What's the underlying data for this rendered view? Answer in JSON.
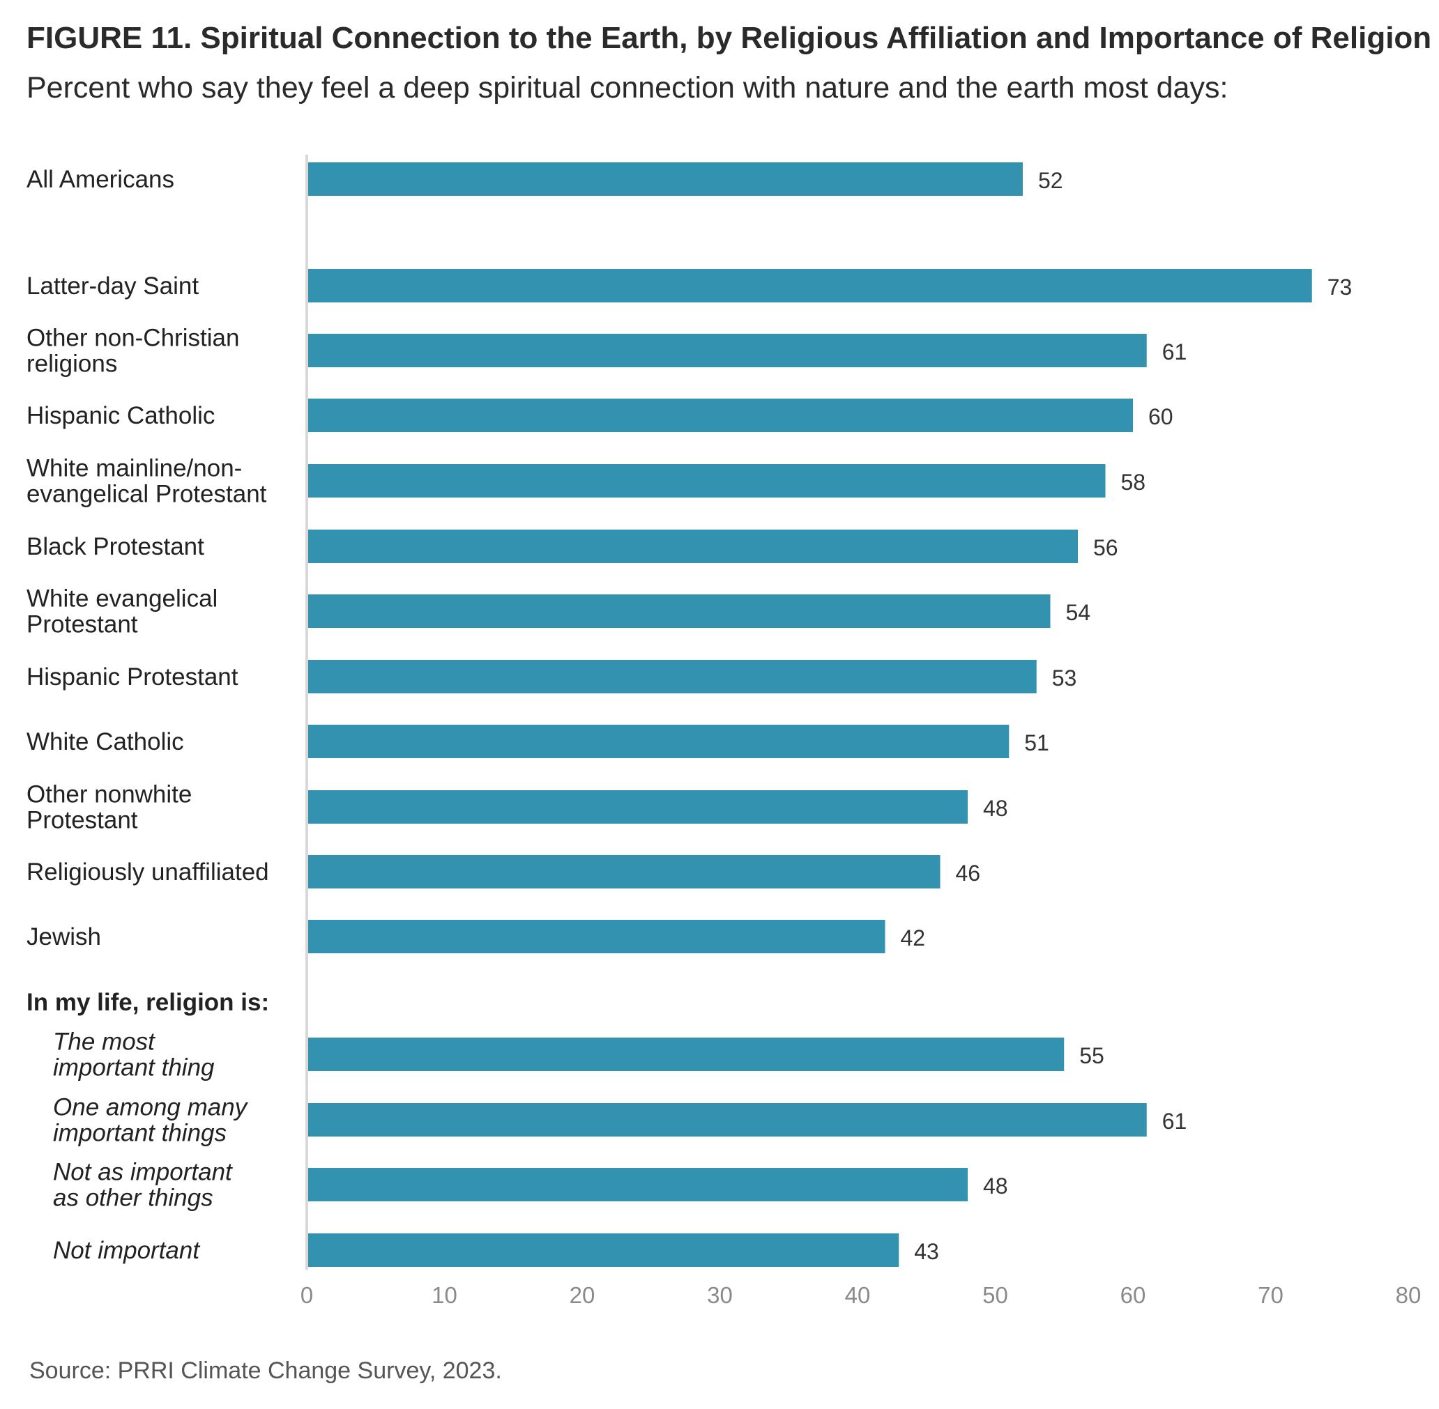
{
  "title": "FIGURE 11. Spiritual Connection to the Earth, by Religious Affiliation and Importance of Religion",
  "subtitle": "Percent who say they feel a deep spiritual connection with nature and the earth most days:",
  "source": "Source: PRRI Climate Change Survey, 2023.",
  "colors": {
    "bar": "#3392B0",
    "axis_line": "#d9d9d9",
    "tick_text": "#8a8a8a"
  },
  "chart_data": {
    "type": "bar",
    "orientation": "horizontal",
    "xlim": [
      0,
      80
    ],
    "x_ticks": [
      0,
      10,
      20,
      30,
      40,
      50,
      60,
      70,
      80
    ],
    "grid": false,
    "section_heading": "In my life, religion is:",
    "categories": [
      "All Americans",
      "Latter-day Saint",
      "Other non-Christian religions",
      "Hispanic Catholic",
      "White mainline/non-evangelical Protestant",
      "Black Protestant",
      "White evangelical Protestant",
      "Hispanic Protestant",
      "White Catholic",
      "Other nonwhite Protestant",
      "Religiously unaffiliated",
      "Jewish",
      "The most important thing",
      "One among many important things",
      "Not as important as other things",
      "Not important"
    ],
    "category_lines": [
      [
        "All Americans"
      ],
      [
        "Latter-day Saint"
      ],
      [
        "Other non-Christian",
        "religions"
      ],
      [
        "Hispanic Catholic"
      ],
      [
        "White mainline/non-",
        "evangelical Protestant"
      ],
      [
        "Black Protestant"
      ],
      [
        "White evangelical",
        "Protestant"
      ],
      [
        "Hispanic Protestant"
      ],
      [
        "White Catholic"
      ],
      [
        "Other nonwhite",
        "Protestant"
      ],
      [
        "Religiously unaffiliated"
      ],
      [
        "Jewish"
      ],
      [
        "The most",
        "important thing"
      ],
      [
        "One among many",
        "important things"
      ],
      [
        "Not as important",
        "as other things"
      ],
      [
        "Not important"
      ]
    ],
    "values": [
      52,
      73,
      61,
      60,
      58,
      56,
      54,
      53,
      51,
      48,
      46,
      42,
      55,
      61,
      48,
      43
    ],
    "italic": [
      false,
      false,
      false,
      false,
      false,
      false,
      false,
      false,
      false,
      false,
      false,
      false,
      true,
      true,
      true,
      true
    ]
  }
}
